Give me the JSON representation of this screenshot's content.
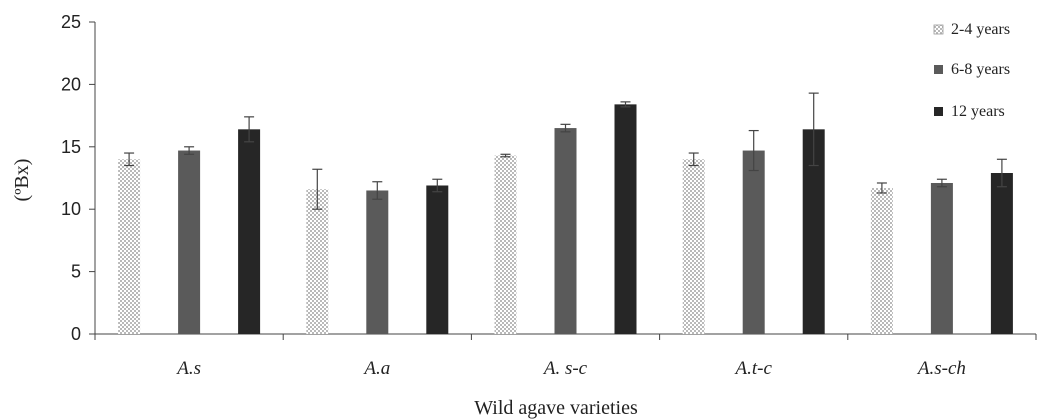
{
  "chart_data": {
    "type": "bar",
    "categories": [
      "A.s",
      "A.a",
      "A. s-c",
      "A.t-c",
      "A.s-ch"
    ],
    "series": [
      {
        "name": "2-4  years",
        "values": [
          14.0,
          11.6,
          14.3,
          14.0,
          11.7
        ],
        "errors": [
          0.5,
          1.6,
          0.1,
          0.5,
          0.4
        ],
        "fill": "checker"
      },
      {
        "name": "6-8  years",
        "values": [
          14.7,
          11.5,
          16.5,
          14.7,
          12.1
        ],
        "errors": [
          0.3,
          0.7,
          0.3,
          1.6,
          0.3
        ],
        "fill": "#5a5a5a"
      },
      {
        "name": "12  years",
        "values": [
          16.4,
          11.9,
          18.4,
          16.4,
          12.9
        ],
        "errors": [
          1.0,
          0.5,
          0.2,
          2.9,
          1.1
        ],
        "fill": "#262626"
      }
    ],
    "xlabel": "Wild agave varieties",
    "ylabel": "(ºBx)",
    "ylim": [
      0,
      25
    ],
    "yticks": [
      "0",
      "5",
      "10",
      "15",
      "20",
      "25"
    ],
    "legend_position": "top-right",
    "grid": false
  }
}
